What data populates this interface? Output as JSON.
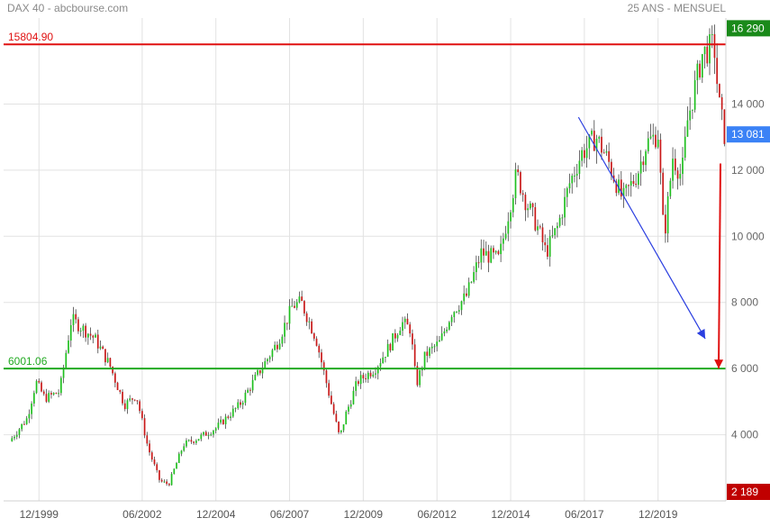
{
  "header": {
    "left_title": "DAX 40 - abcbourse.com",
    "right_title": "25 ANS - MENSUEL"
  },
  "chart_data": {
    "type": "candlestick",
    "ylim": [
      2000,
      16600
    ],
    "xlim": [
      1997.8,
      2022.3
    ],
    "y_ticks": [
      4000,
      6000,
      8000,
      10000,
      12000,
      14000
    ],
    "y_tick_labels": [
      "4 000",
      "6 000",
      "8 000",
      "10 000",
      "12 000",
      "14 000"
    ],
    "x_ticks": [
      1999.0,
      2002.5,
      2005.0,
      2007.5,
      2010.0,
      2012.5,
      2015.0,
      2017.5,
      2020.0
    ],
    "x_tick_labels": [
      "12/1999",
      "06/2002",
      "12/2004",
      "06/2007",
      "12/2009",
      "06/2012",
      "12/2014",
      "06/2017",
      "12/2019"
    ],
    "horizontal_lines": [
      {
        "label": "15804.90",
        "value": 15804.9,
        "color": "#e01010"
      },
      {
        "label": "6001.06",
        "value": 6001.06,
        "color": "#22aa22"
      }
    ],
    "price_tags": [
      {
        "label": "16 290",
        "value": 16290,
        "color": "#1a8a1a"
      },
      {
        "label": "13 081",
        "value": 13081,
        "color": "#3b82f6"
      },
      {
        "label": "2 189",
        "value": 2189,
        "color": "#c00000"
      }
    ],
    "annotations": [
      {
        "type": "arrow",
        "from": [
          2017.3,
          13600
        ],
        "to": [
          2021.6,
          6900
        ],
        "color": "#2b3fe0"
      },
      {
        "type": "arrow",
        "from": [
          2023.8,
          12200
        ],
        "to": [
          2023.7,
          6000
        ],
        "color": "#e01010"
      }
    ],
    "anchors": [
      [
        1998.0,
        3800
      ],
      [
        1998.6,
        4500
      ],
      [
        1998.9,
        5600
      ],
      [
        1999.2,
        5100
      ],
      [
        1999.7,
        5300
      ],
      [
        2000.1,
        7500
      ],
      [
        2000.9,
        6900
      ],
      [
        2001.4,
        6100
      ],
      [
        2001.9,
        4900
      ],
      [
        2002.3,
        5200
      ],
      [
        2002.7,
        3600
      ],
      [
        2003.1,
        2600
      ],
      [
        2003.4,
        2500
      ],
      [
        2003.9,
        3700
      ],
      [
        2004.4,
        3900
      ],
      [
        2005.0,
        4200
      ],
      [
        2005.8,
        4900
      ],
      [
        2006.4,
        5800
      ],
      [
        2007.1,
        6800
      ],
      [
        2007.6,
        7900
      ],
      [
        2007.9,
        8000
      ],
      [
        2008.4,
        6900
      ],
      [
        2008.9,
        5000
      ],
      [
        2009.2,
        3900
      ],
      [
        2009.4,
        4600
      ],
      [
        2009.8,
        5600
      ],
      [
        2010.4,
        6000
      ],
      [
        2010.9,
        6700
      ],
      [
        2011.3,
        7400
      ],
      [
        2011.6,
        7200
      ],
      [
        2011.8,
        5500
      ],
      [
        2012.1,
        6400
      ],
      [
        2012.6,
        6800
      ],
      [
        2013.0,
        7700
      ],
      [
        2013.5,
        8200
      ],
      [
        2014.0,
        9500
      ],
      [
        2014.6,
        9300
      ],
      [
        2015.2,
        11900
      ],
      [
        2015.5,
        11100
      ],
      [
        2015.9,
        10300
      ],
      [
        2016.2,
        9500
      ],
      [
        2016.6,
        10300
      ],
      [
        2017.0,
        11600
      ],
      [
        2017.4,
        12500
      ],
      [
        2017.9,
        13000
      ],
      [
        2018.3,
        12300
      ],
      [
        2018.8,
        11100
      ],
      [
        2019.3,
        11900
      ],
      [
        2019.6,
        12800
      ],
      [
        2020.0,
        13100
      ],
      [
        2020.2,
        9900
      ],
      [
        2020.5,
        12400
      ],
      [
        2020.8,
        11800
      ],
      [
        2021.0,
        13500
      ],
      [
        2021.5,
        15500
      ],
      [
        2021.9,
        15800
      ],
      [
        2022.05,
        14100
      ],
      [
        2022.25,
        13081
      ]
    ]
  }
}
